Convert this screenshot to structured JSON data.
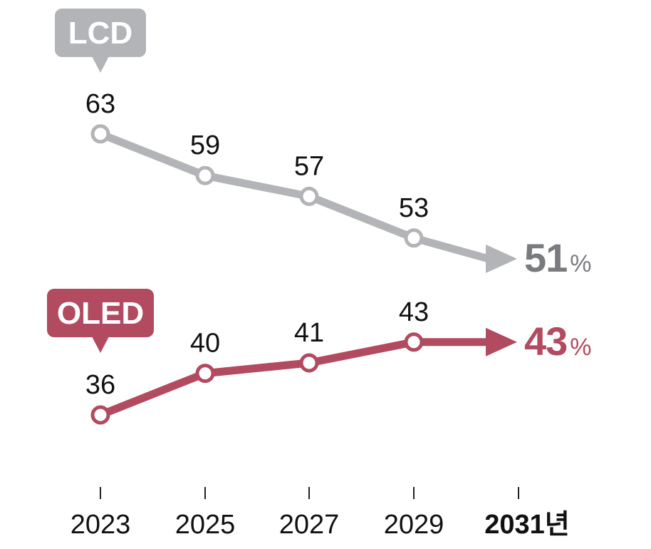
{
  "chart_data": {
    "type": "line",
    "x": [
      "2023",
      "2025",
      "2027",
      "2029",
      "2031"
    ],
    "x_labels": [
      "2023",
      "2025",
      "2027",
      "2029",
      "2031년"
    ],
    "series": [
      {
        "name": "LCD",
        "values": [
          63,
          59,
          57,
          53,
          51
        ],
        "point_labels": [
          "63",
          "59",
          "57",
          "53"
        ],
        "end_value": "51",
        "end_unit": "%",
        "color": "#b3b4b7",
        "end_color": "#7a7b7e"
      },
      {
        "name": "OLED",
        "values": [
          36,
          40,
          41,
          43,
          43
        ],
        "point_labels": [
          "36",
          "40",
          "41",
          "43"
        ],
        "end_value": "43",
        "end_unit": "%",
        "color": "#b24a60",
        "end_color": "#b24a60"
      }
    ],
    "xlabel": "",
    "ylabel": "",
    "title": "",
    "grid": false,
    "legend": "callout tags next to first points"
  },
  "colors": {
    "axis_tick": "#222222",
    "text": "#111111",
    "point_fill": "#ffffff"
  }
}
